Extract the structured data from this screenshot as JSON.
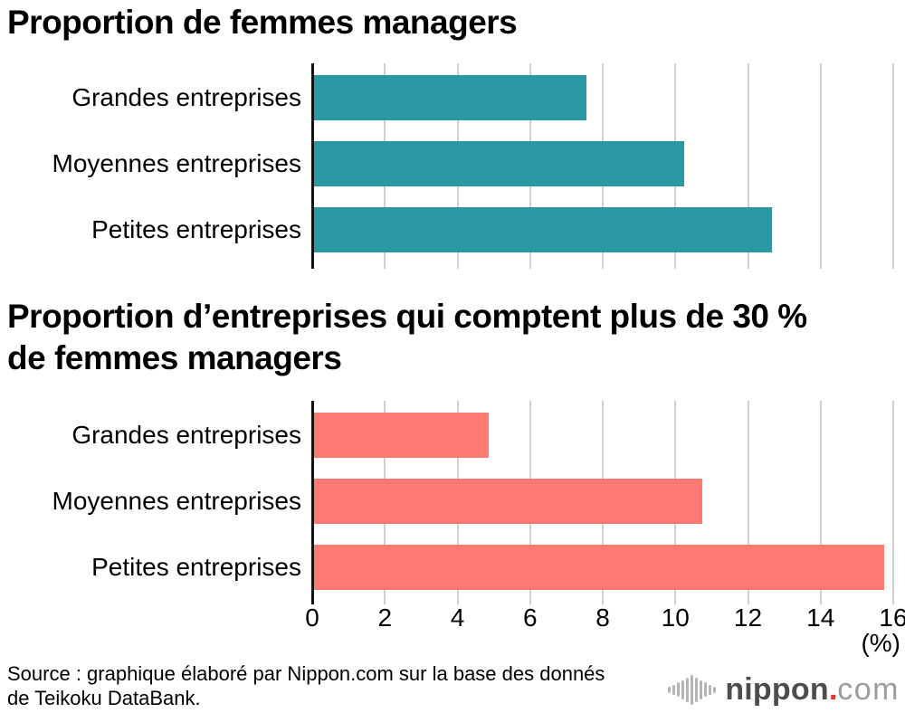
{
  "chart_data": [
    {
      "type": "bar",
      "orientation": "horizontal",
      "title": "Proportion de femmes managers",
      "categories": [
        "Grandes entreprises",
        "Moyennes entreprises",
        "Petites entreprises"
      ],
      "values": [
        7.5,
        10.2,
        12.6
      ],
      "color": "#2b99a4",
      "xlim": [
        0,
        16
      ],
      "x_ticks": [
        0,
        2,
        4,
        6,
        8,
        10,
        12,
        14,
        16
      ],
      "grid": true,
      "legend": "none"
    },
    {
      "type": "bar",
      "orientation": "horizontal",
      "title": "Proportion d’entreprises qui comptent plus de 30 % de femmes managers",
      "title_lines": [
        "Proportion d’entreprises qui comptent plus de 30 %",
        "de femmes managers"
      ],
      "categories": [
        "Grandes entreprises",
        "Moyennes entreprises",
        "Petites entreprises"
      ],
      "values": [
        4.8,
        10.7,
        15.7
      ],
      "color": "#ff7872",
      "xlim": [
        0,
        16
      ],
      "x_ticks": [
        0,
        2,
        4,
        6,
        8,
        10,
        12,
        14,
        16
      ],
      "grid": true,
      "legend": "none"
    }
  ],
  "axis": {
    "max": 16,
    "ticks": [
      0,
      2,
      4,
      6,
      8,
      10,
      12,
      14,
      16
    ],
    "unit_label": "(%)"
  },
  "source": {
    "lines": [
      "Source : graphique élaboré par Nippon.com sur la base des donnés",
      "de Teikoku DataBank."
    ]
  },
  "logo": {
    "brand": "nippon",
    "dot": ".",
    "tld": "com",
    "brand_color": "#4d4d4d",
    "dot_color": "#e8352e",
    "tld_color": "#9b9b9b",
    "icon_color": "#b4b4b4",
    "icon": "soundwave-icon"
  }
}
